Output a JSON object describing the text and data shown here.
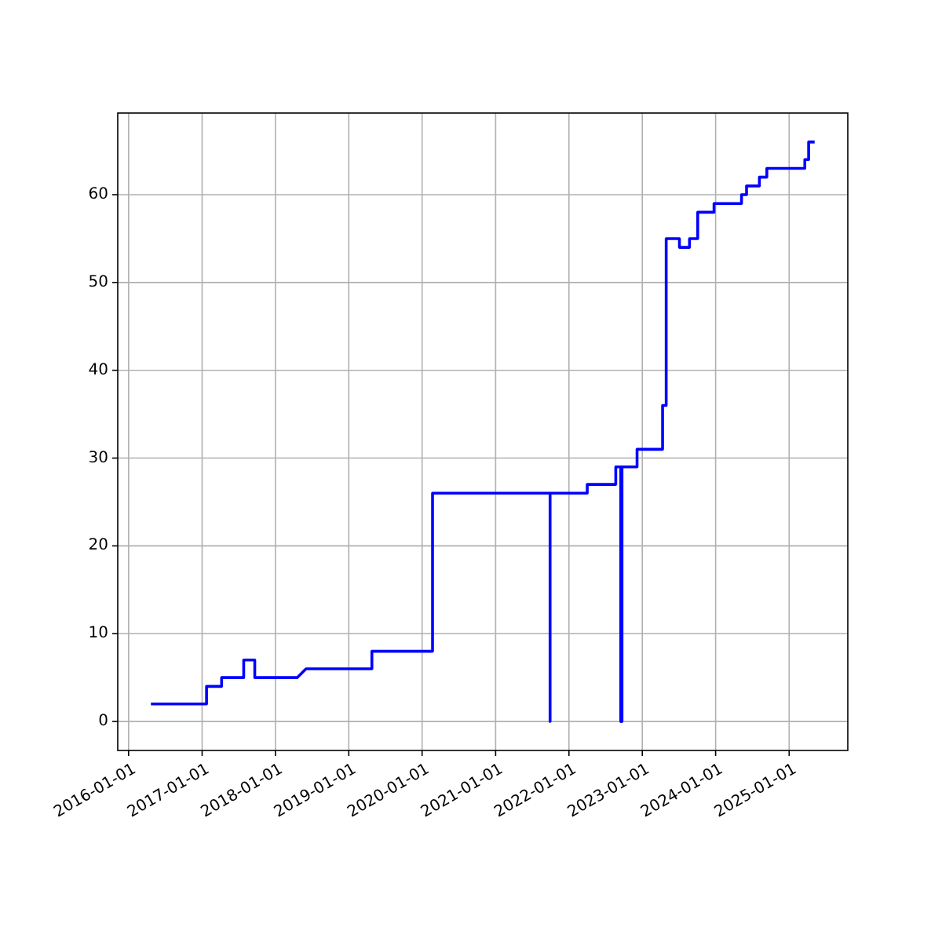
{
  "chart_data": {
    "type": "line",
    "x": [
      "2016-04-21",
      "2017-01-23",
      "2017-01-23",
      "2017-04-08",
      "2017-04-08",
      "2017-07-27",
      "2017-07-27",
      "2017-09-20",
      "2017-09-20",
      "2018-04-19",
      "2018-06-02",
      "2019-04-26",
      "2019-04-26",
      "2020-02-22",
      "2020-02-22",
      "2021-09-29",
      "2021-09-29",
      "2021-09-29",
      "2022-04-02",
      "2022-04-02",
      "2022-08-22",
      "2022-08-22",
      "2022-09-16",
      "2022-09-16",
      "2022-09-16",
      "2022-09-22",
      "2022-09-22",
      "2022-09-22",
      "2022-12-06",
      "2022-12-06",
      "2023-04-12",
      "2023-04-12",
      "2023-04-30",
      "2023-04-30",
      "2023-07-05",
      "2023-07-05",
      "2023-08-24",
      "2023-08-24",
      "2023-10-04",
      "2023-10-04",
      "2023-12-24",
      "2023-12-24",
      "2024-05-09",
      "2024-05-09",
      "2024-06-03",
      "2024-06-03",
      "2024-08-06",
      "2024-08-06",
      "2024-09-12",
      "2024-09-12",
      "2025-03-20",
      "2025-03-20",
      "2025-04-08",
      "2025-04-08",
      "2025-05-08"
    ],
    "series": [
      {
        "color": "#0000ff",
        "values": [
          2,
          2,
          4,
          4,
          5,
          5,
          7,
          7,
          5,
          5,
          6,
          6,
          8,
          8,
          26,
          26,
          0,
          26,
          26,
          27,
          27,
          29,
          29,
          0,
          29,
          29,
          0,
          29,
          29,
          31,
          31,
          36,
          36,
          55,
          55,
          54,
          54,
          55,
          55,
          58,
          58,
          59,
          59,
          60,
          60,
          61,
          61,
          62,
          62,
          63,
          63,
          64,
          64,
          66,
          66
        ]
      }
    ],
    "xlim": [
      "2015-11-08",
      "2025-10-20"
    ],
    "xticks": [
      "2016-01-01",
      "2017-01-01",
      "2018-01-01",
      "2019-01-01",
      "2020-01-01",
      "2021-01-01",
      "2022-01-01",
      "2023-01-01",
      "2024-01-01",
      "2025-01-01"
    ],
    "ylim": [
      -3.3,
      69.3
    ],
    "yticks": [
      0,
      10,
      20,
      30,
      40,
      50,
      60
    ],
    "grid": true,
    "marker": "none",
    "line_style": "solid"
  }
}
